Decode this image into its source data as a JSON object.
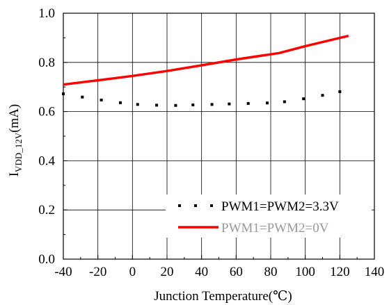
{
  "chart_data": {
    "type": "line",
    "title": "",
    "xlabel": "Junction Temperature(℃)",
    "ylabel": {
      "main": "I",
      "sub": "VDD_12V",
      "unit": "(mA)"
    },
    "xlim": [
      -40,
      140
    ],
    "ylim": [
      0.0,
      1.0
    ],
    "xticks": [
      "-40",
      "-20",
      "0",
      "20",
      "40",
      "60",
      "80",
      "100",
      "120",
      "140"
    ],
    "yticks": [
      "0.0",
      "0.2",
      "0.4",
      "0.6",
      "0.8",
      "1.0"
    ],
    "xtick_values": [
      -40,
      -20,
      0,
      20,
      40,
      60,
      80,
      100,
      120,
      140
    ],
    "ytick_values": [
      0.0,
      0.2,
      0.4,
      0.6,
      0.8,
      1.0
    ],
    "grid": true,
    "legend_position": "bottom-right",
    "series": [
      {
        "name": "PWM1=PWM2=3.3V",
        "style": "dotted",
        "color": "#000000",
        "text_color": "#000000",
        "x": [
          -40,
          -29,
          -18,
          -7,
          3,
          14,
          25,
          35,
          46,
          56,
          67,
          78,
          88,
          99,
          110,
          120
        ],
        "y": [
          0.672,
          0.659,
          0.647,
          0.636,
          0.629,
          0.626,
          0.625,
          0.627,
          0.629,
          0.631,
          0.633,
          0.635,
          0.64,
          0.652,
          0.666,
          0.681
        ]
      },
      {
        "name": "PWM1=PWM2=0V",
        "style": "solid",
        "color": "#ff0000",
        "text_color": "#999999",
        "x": [
          -40,
          -20,
          0,
          20,
          40,
          60,
          85,
          100,
          125
        ],
        "y": [
          0.71,
          0.727,
          0.745,
          0.765,
          0.788,
          0.812,
          0.838,
          0.866,
          0.908
        ]
      }
    ]
  }
}
